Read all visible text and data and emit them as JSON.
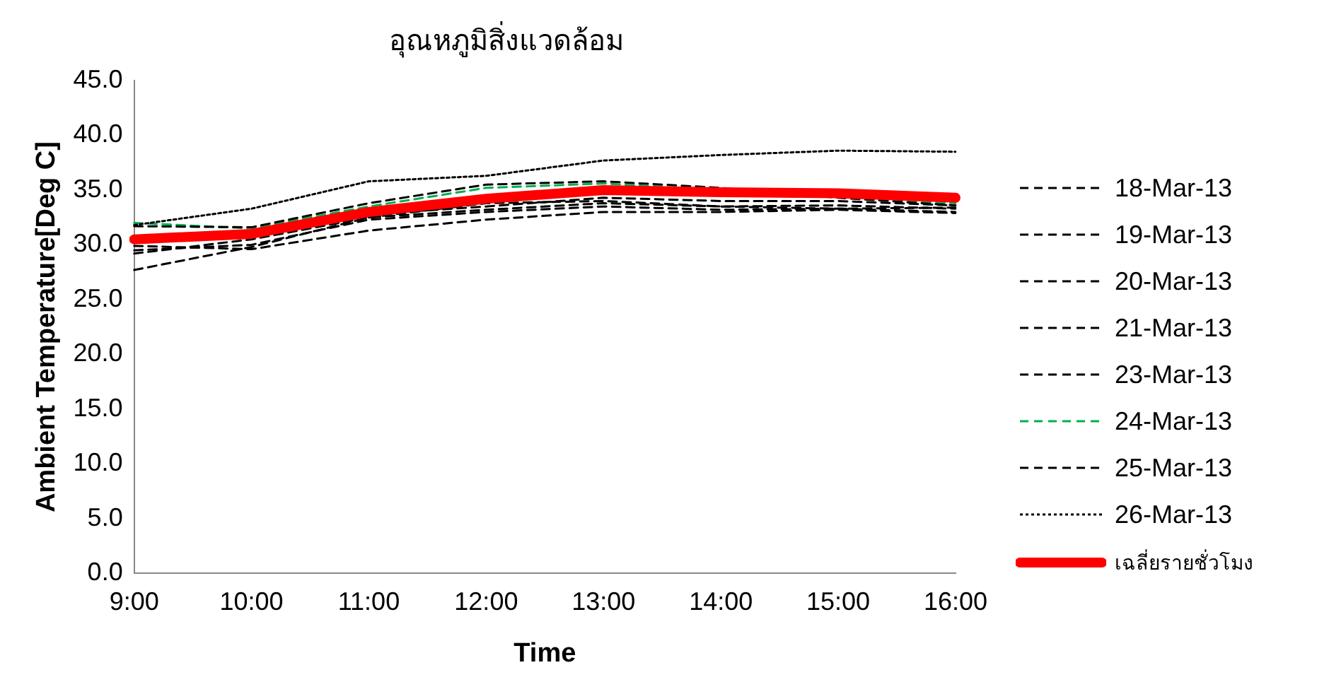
{
  "chart_data": {
    "type": "line",
    "title": "อุณหภูมิสิ่งแวดล้อม",
    "xlabel": "Time",
    "ylabel": "Ambient Temperature[Deg C]",
    "categories": [
      "9:00",
      "10:00",
      "11:00",
      "12:00",
      "13:00",
      "14:00",
      "15:00",
      "16:00"
    ],
    "ylim": [
      0,
      45
    ],
    "yticks": [
      {
        "value": 0,
        "label": "0.0"
      },
      {
        "value": 5,
        "label": "5.0"
      },
      {
        "value": 10,
        "label": "10.0"
      },
      {
        "value": 15,
        "label": "15.0"
      },
      {
        "value": 20,
        "label": "20.0"
      },
      {
        "value": 25,
        "label": "25.0"
      },
      {
        "value": 30,
        "label": "30.0"
      },
      {
        "value": 35,
        "label": "35.0"
      },
      {
        "value": 40,
        "label": "40.0"
      },
      {
        "value": 45,
        "label": "45.0"
      }
    ],
    "grid": false,
    "legend": "right",
    "marker": "none",
    "series": [
      {
        "name": "18-Mar-13",
        "color": "#000000",
        "line_style": "dashed",
        "values": [
          29.5,
          30.0,
          32.3,
          33.0,
          33.5,
          33.2,
          33.3,
          33.0
        ]
      },
      {
        "name": "19-Mar-13",
        "color": "#000000",
        "line_style": "dashed",
        "values": [
          27.7,
          29.8,
          32.5,
          33.8,
          34.0,
          33.5,
          33.3,
          33.4
        ]
      },
      {
        "name": "20-Mar-13",
        "color": "#000000",
        "line_style": "dashed",
        "values": [
          30.2,
          31.0,
          32.8,
          33.5,
          34.3,
          34.0,
          34.0,
          33.6
        ]
      },
      {
        "name": "21-Mar-13",
        "color": "#000000",
        "line_style": "dashed",
        "values": [
          29.9,
          29.6,
          31.3,
          32.3,
          33.0,
          33.0,
          33.2,
          32.9
        ]
      },
      {
        "name": "23-Mar-13",
        "color": "#000000",
        "line_style": "dashed",
        "values": [
          29.2,
          30.5,
          32.5,
          33.2,
          33.8,
          33.5,
          33.6,
          33.3
        ]
      },
      {
        "name": "24-Mar-13",
        "color": "#00b050",
        "line_style": "dashed",
        "values": [
          32.0,
          31.5,
          33.5,
          35.2,
          35.6,
          35.0,
          34.4,
          33.8
        ]
      },
      {
        "name": "25-Mar-13",
        "color": "#000000",
        "line_style": "dashed",
        "values": [
          31.7,
          31.6,
          33.8,
          35.5,
          35.8,
          35.2,
          34.3,
          33.6
        ]
      },
      {
        "name": "26-Mar-13",
        "color": "#000000",
        "line_style": "dotted",
        "values": [
          31.8,
          33.3,
          35.8,
          36.3,
          37.7,
          38.2,
          38.6,
          38.5
        ]
      },
      {
        "name": "เฉลี่ยรายชั่วโมง",
        "color": "#ff0000",
        "line_style": "solid",
        "values": [
          30.5,
          31.0,
          33.0,
          34.2,
          35.0,
          34.8,
          34.7,
          34.3
        ]
      }
    ]
  }
}
